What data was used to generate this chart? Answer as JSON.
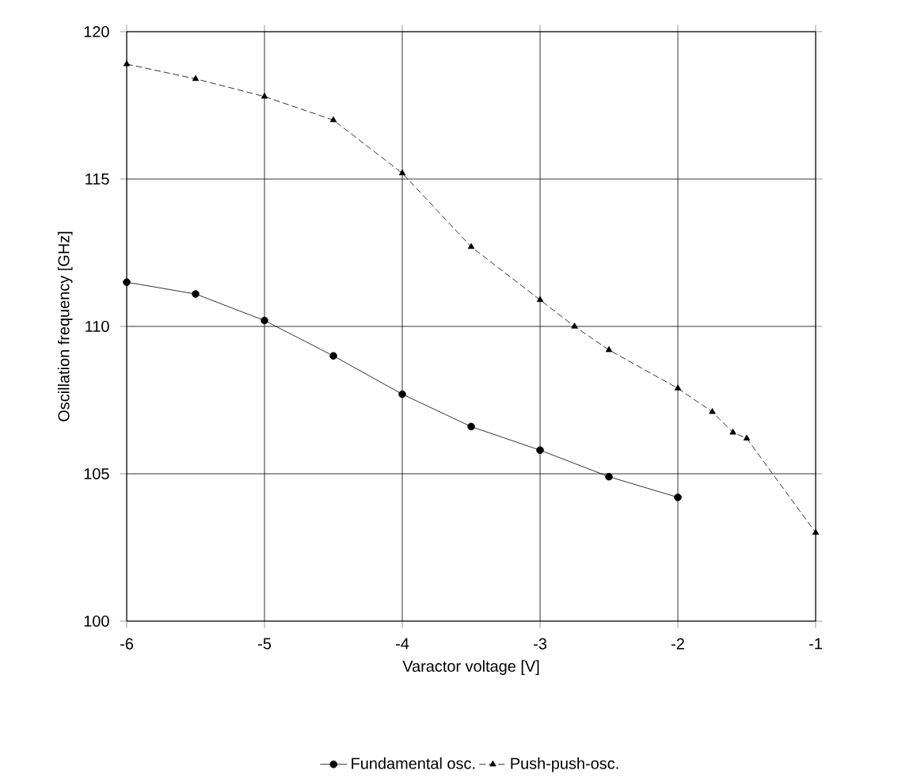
{
  "chart_data": {
    "type": "line",
    "xlabel": "Varactor voltage [V]",
    "ylabel": "Oscillation frequency [GHz]",
    "xlim": [
      -6,
      -1
    ],
    "xticks": [
      -6,
      -5,
      -4,
      -3,
      -2,
      -1
    ],
    "ylim": [
      100,
      120
    ],
    "yticks": [
      100,
      105,
      110,
      115,
      120
    ],
    "grid": true,
    "legend": "bottom",
    "series": [
      {
        "name": "Fundamental osc.",
        "color": "#000000",
        "marker": "circle",
        "line_style": "solid",
        "x": [
          -6,
          -5.5,
          -5,
          -4.5,
          -4,
          -3.5,
          -3,
          -2.5,
          -2
        ],
        "values": [
          111.5,
          111.1,
          110.2,
          109.0,
          107.7,
          106.6,
          105.8,
          104.9,
          104.2
        ]
      },
      {
        "name": "Push-push-osc.",
        "color": "#000000",
        "marker": "triangle",
        "line_style": "dashed",
        "x": [
          -6,
          -5.5,
          -5,
          -4.5,
          -4,
          -3.5,
          -3,
          -2.75,
          -2.5,
          -2,
          -1.75,
          -1.6,
          -1.5,
          -1
        ],
        "values": [
          118.9,
          118.4,
          117.8,
          117.0,
          115.2,
          112.7,
          110.9,
          110.0,
          109.2,
          107.9,
          107.1,
          106.4,
          106.2,
          103.0
        ]
      }
    ]
  }
}
